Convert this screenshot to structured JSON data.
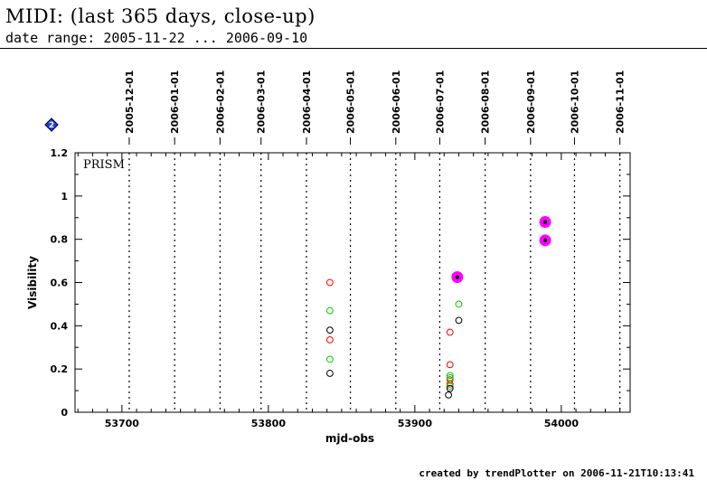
{
  "header": {
    "title": "MIDI: (last 365 days, close-up)",
    "subtitle": "date range: 2005-11-22 ... 2006-09-10"
  },
  "footer": {
    "text": "created by trendPlotter on 2006-11-21T10:13:41"
  },
  "legend_marker": {
    "icon": "blue-diamond-icon",
    "label": "2"
  },
  "chart_data": {
    "type": "scatter",
    "title": "",
    "xlabel": "mjd-obs",
    "ylabel": "Visibility",
    "panel_label": "PRISM",
    "xlim": [
      53668,
      54047
    ],
    "ylim": [
      0,
      1.2
    ],
    "xticks": [
      53700,
      53800,
      53900,
      54000
    ],
    "xticklabels": [
      "53700",
      "53800",
      "53900",
      "54000"
    ],
    "yticks": [
      0,
      0.2,
      0.4,
      0.6,
      0.8,
      1,
      1.2
    ],
    "yticklabels": [
      "0",
      "0.2",
      "0.4",
      "0.6",
      "0.8",
      "1",
      "1.2"
    ],
    "date_markers": [
      {
        "mjd": 53705,
        "label": "2005-12-01"
      },
      {
        "mjd": 53736,
        "label": "2006-01-01"
      },
      {
        "mjd": 53767,
        "label": "2006-02-01"
      },
      {
        "mjd": 53795,
        "label": "2006-03-01"
      },
      {
        "mjd": 53826,
        "label": "2006-04-01"
      },
      {
        "mjd": 53856,
        "label": "2006-05-01"
      },
      {
        "mjd": 53887,
        "label": "2006-06-01"
      },
      {
        "mjd": 53917,
        "label": "2006-07-01"
      },
      {
        "mjd": 53948,
        "label": "2006-08-01"
      },
      {
        "mjd": 53979,
        "label": "2006-09-01"
      },
      {
        "mjd": 54009,
        "label": "2006-10-01"
      },
      {
        "mjd": 54040,
        "label": "2006-11-01"
      }
    ],
    "series": [
      {
        "color": "#ff0000",
        "marker": "open-circle",
        "points": [
          {
            "x": 53842,
            "y": 0.6
          },
          {
            "x": 53842,
            "y": 0.335
          },
          {
            "x": 53924,
            "y": 0.37
          },
          {
            "x": 53924,
            "y": 0.22
          },
          {
            "x": 53924,
            "y": 0.15
          },
          {
            "x": 53924,
            "y": 0.13
          }
        ]
      },
      {
        "color": "#00cc00",
        "marker": "open-circle",
        "points": [
          {
            "x": 53842,
            "y": 0.47
          },
          {
            "x": 53842,
            "y": 0.245
          },
          {
            "x": 53930,
            "y": 0.5
          },
          {
            "x": 53924,
            "y": 0.17
          },
          {
            "x": 53924,
            "y": 0.16
          },
          {
            "x": 53924,
            "y": 0.12
          }
        ]
      },
      {
        "color": "#000000",
        "marker": "open-circle",
        "points": [
          {
            "x": 53842,
            "y": 0.38
          },
          {
            "x": 53842,
            "y": 0.18
          },
          {
            "x": 53930,
            "y": 0.425
          },
          {
            "x": 53924,
            "y": 0.11
          },
          {
            "x": 53923,
            "y": 0.08
          }
        ]
      },
      {
        "color": "#ff00ff",
        "marker": "filled-highlight",
        "points": [
          {
            "x": 53929,
            "y": 0.625
          },
          {
            "x": 53989,
            "y": 0.88
          },
          {
            "x": 53989,
            "y": 0.795
          }
        ]
      }
    ]
  }
}
